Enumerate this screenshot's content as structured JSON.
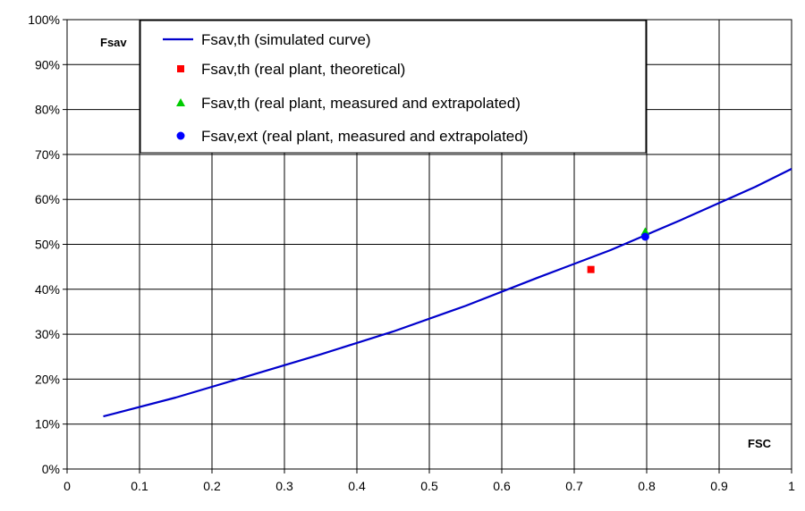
{
  "chart_data": {
    "type": "line",
    "title": "",
    "xlabel": "FSC",
    "ylabel": "Fsav",
    "xlim": [
      0,
      1
    ],
    "ylim": [
      0,
      100
    ],
    "grid": true,
    "legend_position": "top",
    "x_ticks": [
      "0",
      "0.1",
      "0.2",
      "0.3",
      "0.4",
      "0.5",
      "0.6",
      "0.7",
      "0.8",
      "0.9",
      "1"
    ],
    "y_ticks": [
      "0%",
      "10%",
      "20%",
      "30%",
      "40%",
      "50%",
      "60%",
      "70%",
      "80%",
      "90%",
      "100%"
    ],
    "series": [
      {
        "name": "Fsav,th (simulated curve)",
        "kind": "line",
        "color": "#0000cc",
        "marker": "none",
        "x": [
          0.05,
          0.15,
          0.25,
          0.35,
          0.45,
          0.55,
          0.65,
          0.75,
          0.85,
          0.95,
          1.0
        ],
        "y": [
          11.7,
          15.9,
          20.7,
          25.5,
          30.6,
          36.3,
          42.6,
          48.7,
          55.6,
          62.8,
          66.8
        ]
      },
      {
        "name": "Fsav,th (real plant, theoretical)",
        "kind": "point",
        "color": "#ff0000",
        "marker": "square",
        "x": [
          0.723
        ],
        "y": [
          44.4
        ]
      },
      {
        "name": "Fsav,th (real plant, measured and extrapolated)",
        "kind": "point",
        "color": "#00cc00",
        "marker": "triangle",
        "x": [
          0.798
        ],
        "y": [
          52.8
        ]
      },
      {
        "name": "Fsav,ext (real plant, measured and extrapolated)",
        "kind": "point",
        "color": "#0000ff",
        "marker": "circle",
        "x": [
          0.798
        ],
        "y": [
          51.7
        ]
      }
    ]
  }
}
